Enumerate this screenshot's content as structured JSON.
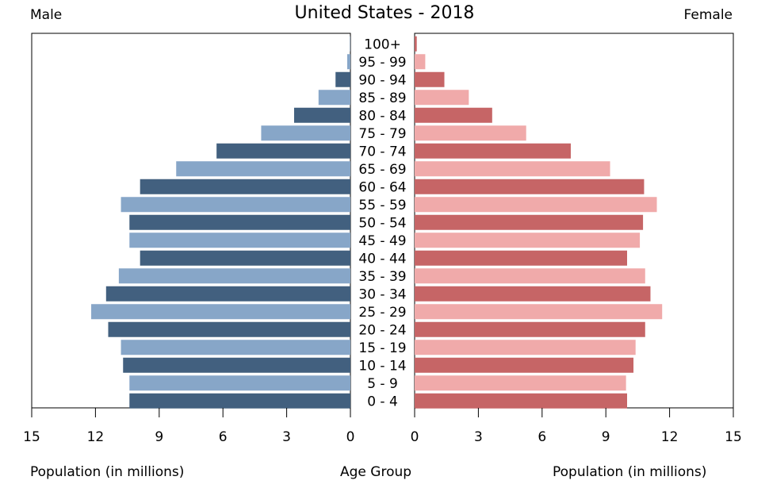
{
  "chart_data": {
    "type": "bar",
    "title": "United States - 2018",
    "left_label": "Male",
    "right_label": "Female",
    "xlabel_left": "Population (in millions)",
    "xlabel_center": "Age Group",
    "xlabel_right": "Population (in millions)",
    "xlim": [
      0,
      15
    ],
    "xticks": [
      "15",
      "12",
      "9",
      "6",
      "3",
      "0",
      "0",
      "3",
      "6",
      "9",
      "12",
      "15"
    ],
    "categories": [
      "100+",
      "95 - 99",
      "90 - 94",
      "85 - 89",
      "80 - 84",
      "75 - 79",
      "70 - 74",
      "65 - 69",
      "60 - 64",
      "55 - 59",
      "50 - 54",
      "45 - 49",
      "40 - 44",
      "35 - 39",
      "30 - 34",
      "25 - 29",
      "20 - 24",
      "15 - 19",
      "10 - 14",
      "5 - 9",
      "0 - 4"
    ],
    "series": [
      {
        "values": [
          0.02,
          0.15,
          0.7,
          1.5,
          2.65,
          4.2,
          6.3,
          8.2,
          9.9,
          10.8,
          10.4,
          10.4,
          9.9,
          10.9,
          11.5,
          12.2,
          11.4,
          10.8,
          10.7,
          10.4,
          10.4
        ]
      },
      {
        "values": [
          0.1,
          0.5,
          1.4,
          2.55,
          3.65,
          5.25,
          7.35,
          9.2,
          10.8,
          11.4,
          10.75,
          10.6,
          10.0,
          10.85,
          11.1,
          11.65,
          10.85,
          10.4,
          10.3,
          9.95,
          10.0
        ]
      }
    ],
    "colors": {
      "male_dark": "#42607f",
      "male_light": "#87a6c8",
      "female_dark": "#c66566",
      "female_light": "#f0aaaa"
    }
  }
}
